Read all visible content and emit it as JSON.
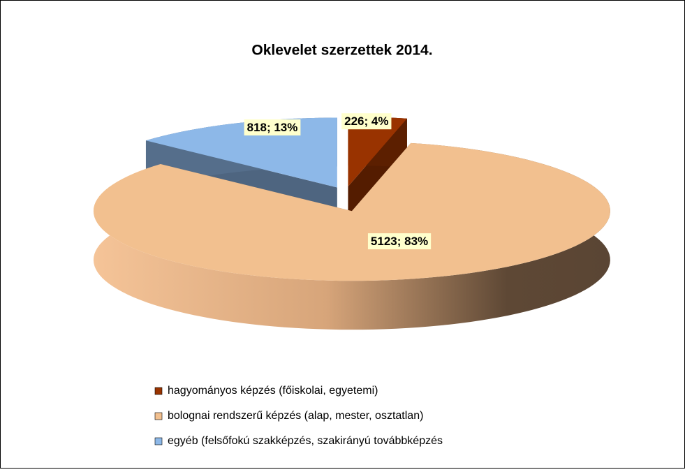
{
  "chart_data": {
    "type": "pie",
    "title": "Oklevelet szerzettek 2014.",
    "categories": [
      "hagyományos képzés (főiskolai, egyetemi)",
      "bolognai rendszerű képzés (alap, mester, osztatlan)",
      "egyéb (felsőfokú szakképzés, szakirányú továbbképzés"
    ],
    "values": [
      226,
      5123,
      818
    ],
    "value_labels": [
      "226; 4%",
      "5123; 83%",
      "818; 13%"
    ],
    "colors": [
      "#993300",
      "#F2C08F",
      "#8DB8E8"
    ],
    "legend": "bottom"
  }
}
